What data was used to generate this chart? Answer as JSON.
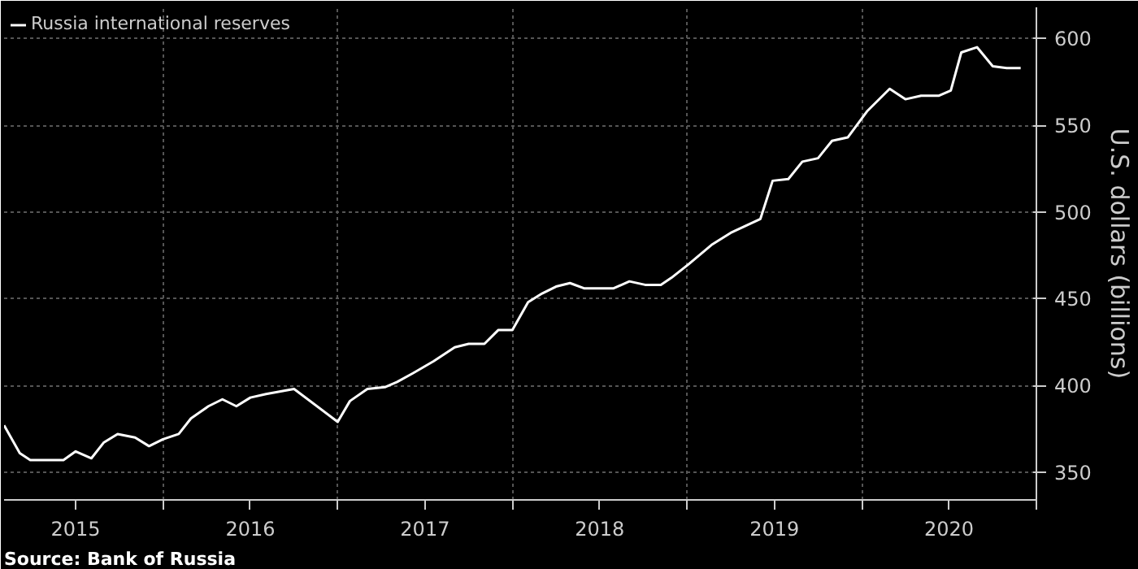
{
  "chart_data": {
    "type": "line",
    "ylabel": "U.S. dollars (billions)",
    "annotations": [
      "Source: Bank of Russia"
    ],
    "x": [
      2015.09,
      2015.18,
      2015.24,
      2015.43,
      2015.5,
      2015.59,
      2015.66,
      2015.74,
      2015.84,
      2015.92,
      2016.0,
      2016.09,
      2016.16,
      2016.26,
      2016.34,
      2016.42,
      2016.5,
      2016.59,
      2016.75,
      2017.0,
      2017.07,
      2017.17,
      2017.27,
      2017.34,
      2017.43,
      2017.55,
      2017.67,
      2017.75,
      2017.84,
      2017.92,
      2018.0,
      2018.09,
      2018.17,
      2018.25,
      2018.33,
      2018.41,
      2018.58,
      2018.67,
      2018.76,
      2018.85,
      2018.91,
      2019.01,
      2019.14,
      2019.25,
      2019.42,
      2019.49,
      2019.58,
      2019.66,
      2019.75,
      2019.83,
      2019.92,
      2020.03,
      2020.16,
      2020.25,
      2020.34,
      2020.44,
      2020.51,
      2020.57,
      2020.66,
      2020.75,
      2020.83,
      2020.91
    ],
    "series": [
      {
        "name": "Russia international reserves",
        "color": "#ffffff",
        "values": [
          377,
          361,
          357,
          357,
          362,
          358,
          367,
          372,
          370,
          365,
          369,
          372,
          381,
          388,
          392,
          388,
          393,
          395,
          398,
          379,
          391,
          398,
          399,
          402,
          407,
          414,
          422,
          424,
          424,
          432,
          432,
          448,
          453,
          457,
          459,
          456,
          456,
          460,
          458,
          458,
          462,
          470,
          481,
          488,
          496,
          518,
          519,
          529,
          531,
          541,
          543,
          558,
          571,
          565,
          567,
          567,
          570,
          592,
          595,
          584,
          583,
          583
        ]
      }
    ],
    "xlim": [
      2015.09,
      2021.0
    ],
    "ylim": [
      334,
      618
    ],
    "xticks": [
      {
        "value": 2015.5,
        "label": "2015"
      },
      {
        "value": 2016,
        "label": null
      },
      {
        "value": 2016.5,
        "label": "2016"
      },
      {
        "value": 2017,
        "label": null
      },
      {
        "value": 2017.5,
        "label": "2017"
      },
      {
        "value": 2018,
        "label": null
      },
      {
        "value": 2018.5,
        "label": "2018"
      },
      {
        "value": 2019,
        "label": null
      },
      {
        "value": 2019.5,
        "label": "2019"
      },
      {
        "value": 2020,
        "label": null
      },
      {
        "value": 2020.5,
        "label": "2020"
      },
      {
        "value": 2021,
        "label": null
      }
    ],
    "yticks": [
      350,
      400,
      450,
      500,
      550,
      600
    ],
    "grid": true,
    "legend": "top left",
    "line_style": "solid",
    "marker": "none"
  }
}
